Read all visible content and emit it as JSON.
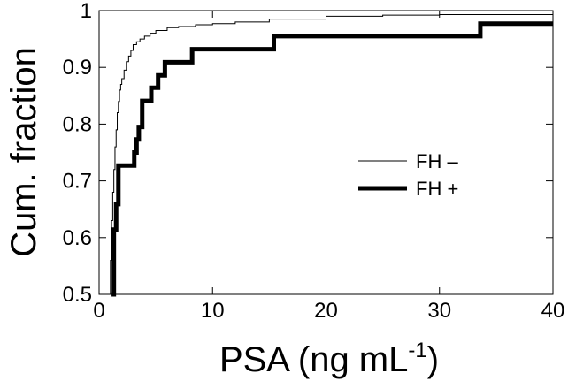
{
  "chart_data": {
    "type": "line",
    "step": true,
    "title": "",
    "xlabel": "PSA (ng mL",
    "xlabel_sup": "-1",
    "xlabel_close": ")",
    "ylabel": "Cum. fraction",
    "xlim": [
      0,
      40
    ],
    "ylim": [
      0.5,
      1.0
    ],
    "x_ticks": [
      0,
      10,
      20,
      30,
      40
    ],
    "y_ticks": [
      0.5,
      0.6,
      0.7,
      0.8,
      0.9,
      1.0
    ],
    "x_tick_labels": [
      "0",
      "10",
      "20",
      "30",
      "40"
    ],
    "y_tick_labels": [
      "0.5",
      "0.6",
      "0.7",
      "0.8",
      "0.9",
      "1"
    ],
    "grid": false,
    "legend_position": "center-right",
    "series": [
      {
        "name": "FH –",
        "style": "thin",
        "color": "#000000",
        "x": [
          0.9,
          1.0,
          1.1,
          1.2,
          1.3,
          1.4,
          1.5,
          1.6,
          1.7,
          1.8,
          1.9,
          2.0,
          2.2,
          2.4,
          2.6,
          2.8,
          3.0,
          3.3,
          3.6,
          4.0,
          4.5,
          5.0,
          6.0,
          7.0,
          8.5,
          10.0,
          12.0,
          15.0,
          20.0,
          25.0,
          30.0,
          40.0
        ],
        "y": [
          0.5,
          0.56,
          0.63,
          0.68,
          0.72,
          0.76,
          0.79,
          0.82,
          0.84,
          0.86,
          0.87,
          0.88,
          0.895,
          0.91,
          0.92,
          0.93,
          0.94,
          0.945,
          0.95,
          0.955,
          0.96,
          0.965,
          0.97,
          0.972,
          0.975,
          0.977,
          0.98,
          0.985,
          0.99,
          0.992,
          0.993,
          0.993
        ]
      },
      {
        "name": "FH +",
        "style": "thick",
        "color": "#000000",
        "x": [
          1.1,
          1.3,
          1.5,
          1.7,
          3.1,
          3.3,
          3.5,
          3.8,
          4.6,
          5.2,
          5.8,
          8.2,
          15.4,
          33.6,
          40.0
        ],
        "y": [
          0.5,
          0.614,
          0.659,
          0.727,
          0.75,
          0.773,
          0.795,
          0.841,
          0.864,
          0.886,
          0.909,
          0.932,
          0.955,
          0.977,
          0.977
        ]
      }
    ]
  }
}
